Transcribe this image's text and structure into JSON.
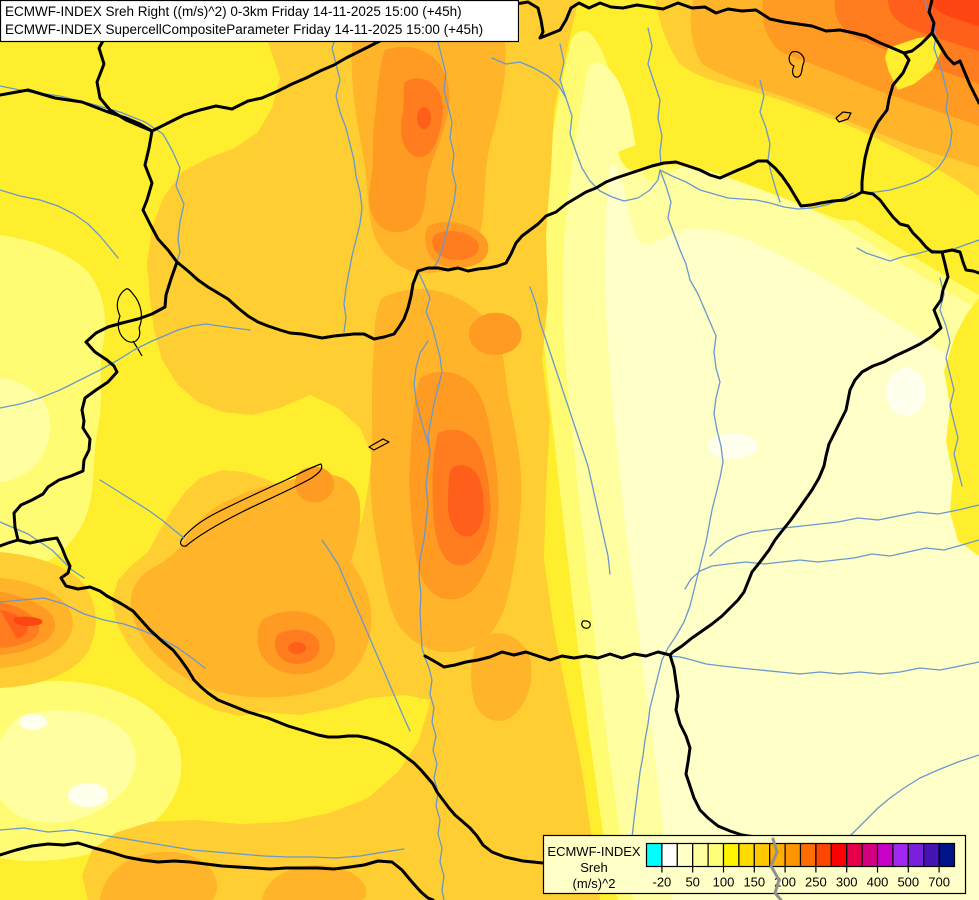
{
  "titles": {
    "line1": "ECMWF-INDEX Sreh Right ((m/s)^2) 0-3km Friday 14-11-2025 15:00 (+45h)",
    "line2": "ECMWF-INDEX SupercellCompositeParameter Friday 14-11-2025 15:00 (+45h)"
  },
  "legend": {
    "title": "ECMWF-INDEX",
    "parameter": "Sreh",
    "units": "(m/s)^2",
    "tick_labels": [
      "-20",
      "50",
      "100",
      "150",
      "200",
      "250",
      "300",
      "400",
      "500",
      "700"
    ],
    "segment_colors": [
      "#00FFFF",
      "#FFFFFF",
      "#FFFFC8",
      "#FFFFA0",
      "#FFFF78",
      "#FFF500",
      "#FFDC00",
      "#FFC800",
      "#FFAF00",
      "#FF9600",
      "#FF6E00",
      "#FF4600",
      "#FF0000",
      "#E6004B",
      "#D20080",
      "#C800C8",
      "#A028F0",
      "#7820DC",
      "#4614B4",
      "#001489"
    ],
    "background": "#FFFFC8"
  },
  "map": {
    "region": "Hungary and surrounding countries",
    "palette": {
      "white": "#FFFFEE",
      "cream": "#FFFFC8",
      "pale_yellow": "#FFFFA2",
      "light_yellow": "#FFFC74",
      "yellow": "#FFEE2E",
      "gold": "#FFCE32",
      "amber": "#FFB42A",
      "orange": "#FF9A22",
      "deep_orange": "#FF7D1E",
      "red_orange": "#FF5F1A",
      "red": "#FF4612"
    },
    "border_color": "#000000",
    "river_color": "#6A98CC",
    "border_over_legend_color": "#909090"
  }
}
